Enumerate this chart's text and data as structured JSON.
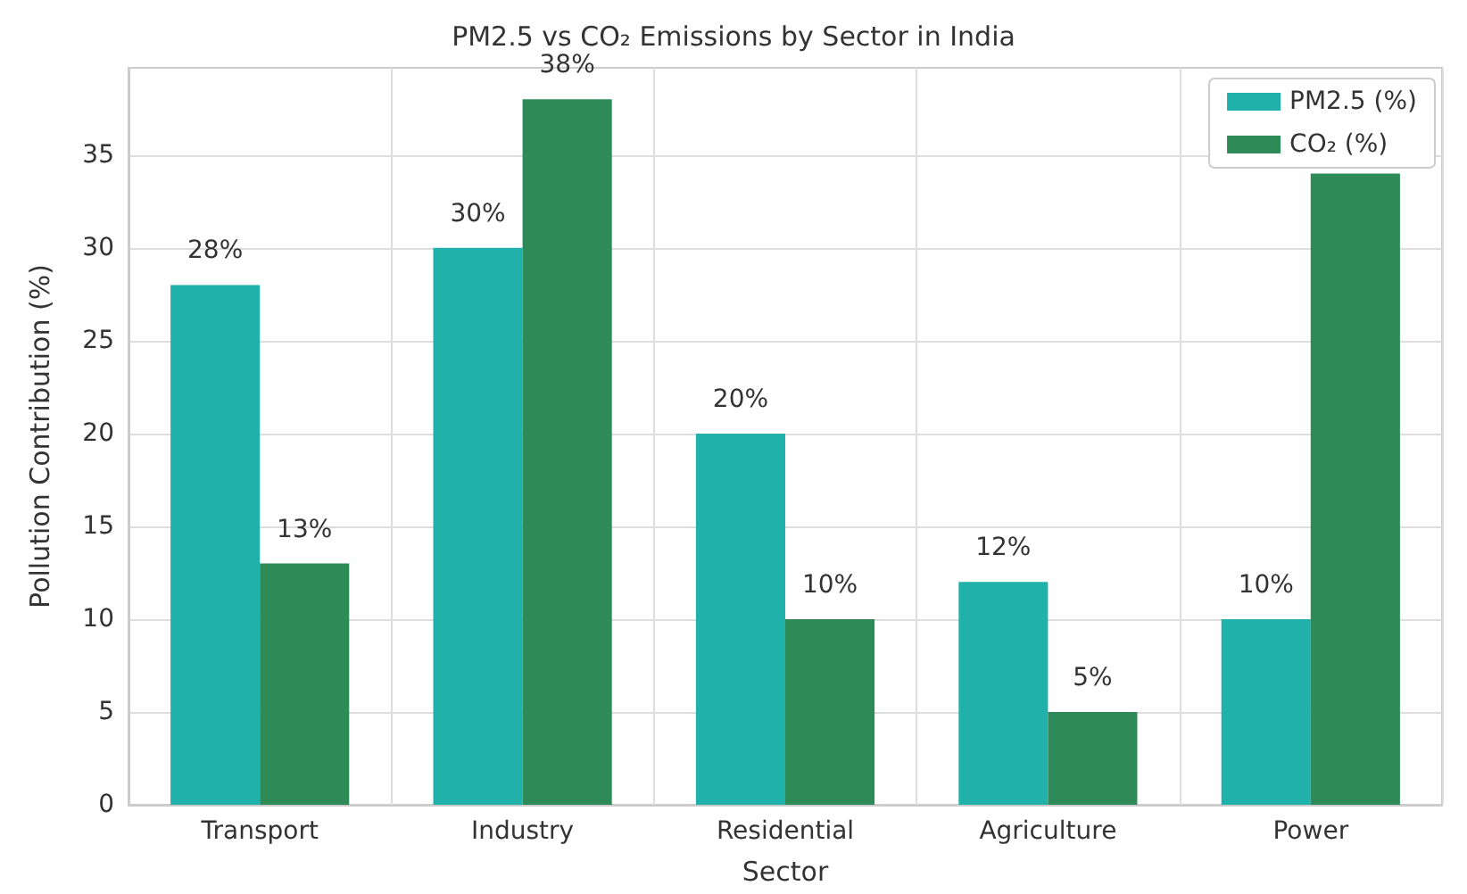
{
  "chart_data": {
    "type": "bar",
    "title": "PM2.5 vs CO₂ Emissions by Sector in India",
    "xlabel": "Sector",
    "ylabel": "Pollution Contribution (%)",
    "categories": [
      "Transport",
      "Industry",
      "Residential",
      "Agriculture",
      "Power"
    ],
    "series": [
      {
        "name": "PM2.5 (%)",
        "color": "#20b2aa",
        "values": [
          28,
          30,
          20,
          12,
          10
        ],
        "value_labels": [
          "28%",
          "30%",
          "20%",
          "12%",
          "10%"
        ]
      },
      {
        "name": "CO₂ (%)",
        "color": "#2e8b57",
        "values": [
          13,
          38,
          10,
          5,
          34
        ],
        "value_labels": [
          "13%",
          "38%",
          "10%",
          "5%",
          null
        ]
      }
    ],
    "ylim": [
      0,
      39.7
    ],
    "yticks": [
      0,
      5,
      10,
      15,
      20,
      25,
      30,
      35
    ],
    "grid": true,
    "legend": "top right"
  }
}
